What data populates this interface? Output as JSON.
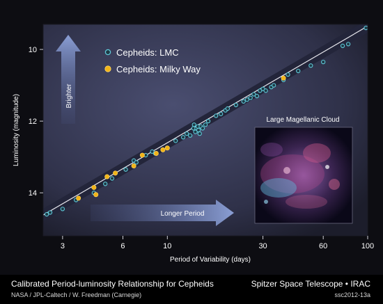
{
  "chart_data": {
    "type": "scatter",
    "xscale": "log",
    "xlim": [
      2.4,
      100
    ],
    "ylim": [
      15.2,
      9.3
    ],
    "y_inverted": true,
    "xticks": [
      3,
      6,
      10,
      30,
      60,
      100
    ],
    "yticks": [
      10,
      12,
      14
    ],
    "xlabel": "Period of Variability (days)",
    "ylabel": "Luminosity (magnitude)",
    "grid": false,
    "legend_position": "top-left",
    "fit_line": {
      "x": [
        2.4,
        100
      ],
      "y": [
        14.62,
        9.35
      ]
    },
    "series": [
      {
        "name": "Cepheids: LMC",
        "color": "#5fc8d8",
        "points": [
          [
            2.5,
            14.6
          ],
          [
            2.6,
            14.55
          ],
          [
            3.0,
            14.45
          ],
          [
            3.5,
            14.2
          ],
          [
            3.6,
            14.15
          ],
          [
            4.3,
            14.0
          ],
          [
            4.9,
            13.75
          ],
          [
            5.3,
            13.6
          ],
          [
            6.2,
            13.35
          ],
          [
            6.8,
            13.25
          ],
          [
            6.8,
            13.1
          ],
          [
            7.0,
            13.15
          ],
          [
            7.8,
            12.95
          ],
          [
            8.4,
            12.85
          ],
          [
            8.7,
            12.9
          ],
          [
            9.5,
            12.8
          ],
          [
            11.0,
            12.55
          ],
          [
            12.0,
            12.45
          ],
          [
            12.5,
            12.35
          ],
          [
            13.0,
            12.4
          ],
          [
            13.5,
            12.2
          ],
          [
            13.6,
            12.1
          ],
          [
            13.8,
            12.3
          ],
          [
            14.0,
            12.2
          ],
          [
            14.2,
            12.15
          ],
          [
            14.3,
            12.25
          ],
          [
            14.5,
            12.35
          ],
          [
            14.7,
            12.15
          ],
          [
            15.0,
            12.2
          ],
          [
            15.5,
            12.1
          ],
          [
            16.0,
            12.0
          ],
          [
            17.5,
            11.85
          ],
          [
            18.5,
            11.8
          ],
          [
            19.5,
            11.7
          ],
          [
            20.0,
            11.65
          ],
          [
            22.0,
            11.55
          ],
          [
            24.0,
            11.45
          ],
          [
            25.0,
            11.4
          ],
          [
            26.0,
            11.35
          ],
          [
            27.0,
            11.25
          ],
          [
            28.0,
            11.3
          ],
          [
            29.0,
            11.15
          ],
          [
            30.0,
            11.1
          ],
          [
            31.0,
            11.15
          ],
          [
            33.0,
            11.05
          ],
          [
            34.0,
            11.0
          ],
          [
            38.0,
            10.85
          ],
          [
            40.0,
            10.7
          ],
          [
            45.0,
            10.6
          ],
          [
            52.0,
            10.45
          ],
          [
            60.0,
            10.35
          ],
          [
            75.0,
            9.9
          ],
          [
            80.0,
            9.85
          ],
          [
            98.0,
            9.4
          ]
        ]
      },
      {
        "name": "Cepheids: Milky Way",
        "color": "#f2b418",
        "points": [
          [
            3.6,
            14.15
          ],
          [
            4.3,
            13.85
          ],
          [
            4.4,
            14.05
          ],
          [
            5.0,
            13.55
          ],
          [
            5.5,
            13.45
          ],
          [
            6.8,
            13.25
          ],
          [
            7.5,
            12.95
          ],
          [
            8.8,
            12.9
          ],
          [
            9.5,
            12.8
          ],
          [
            10.0,
            12.75
          ],
          [
            38.0,
            10.8
          ]
        ]
      }
    ],
    "annotations": {
      "brighter": "Brighter",
      "longer_period": "Longer Period",
      "inset_title": "Large Magellanic Cloud"
    }
  },
  "footer": {
    "title": "Calibrated Period-luminosity Relationship for Cepheids",
    "credit": "NASA / JPL-Caltech / W. Freedman (Carnegie)",
    "mission": "Spitzer Space Telescope • IRAC",
    "image_id": "ssc2012-13a"
  },
  "colors": {
    "plot_bg": "#3c3f5c",
    "band": "#23253a",
    "fit_line": "#e8e8ee",
    "arrow": "#8a9fd4"
  }
}
